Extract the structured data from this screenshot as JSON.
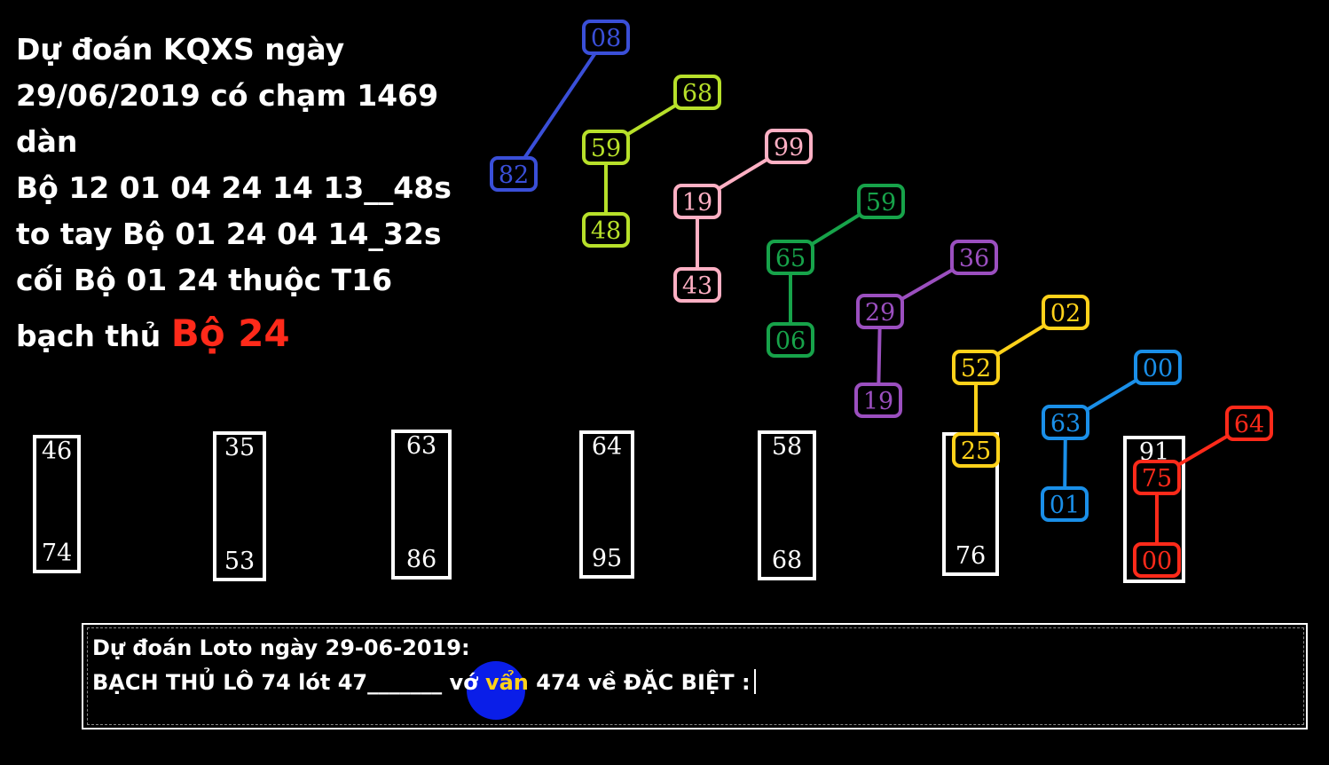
{
  "headline": {
    "lines": [
      "Dự đoán KQXS ngày",
      "29/06/2019 có chạm 1469",
      "dàn",
      "Bộ 12 01 04 24 14 13__48s",
      "to tay Bộ 01 24 04 14_32s",
      "cối Bộ 01 24 thuộc T16"
    ],
    "last_prefix": "bạch thủ",
    "last_highlight": "Bộ 24"
  },
  "colors": {
    "blue_dark": "#3a4fd8",
    "lime": "#b7e02a",
    "pink": "#ffb0c4",
    "green": "#17a34a",
    "purple": "#9b4fbf",
    "yellow": "#ffd21a",
    "blue": "#1a8fe8",
    "red": "#ff2a1a",
    "white": "#ffffff"
  },
  "columns": [
    {
      "top": "46",
      "bottom": "74"
    },
    {
      "top": "35",
      "bottom": "53"
    },
    {
      "top": "63",
      "bottom": "86"
    },
    {
      "top": "64",
      "bottom": "95"
    },
    {
      "top": "58",
      "bottom": "68"
    },
    {
      "top": "",
      "bottom": "76"
    },
    {
      "top": "91",
      "bottom": ""
    }
  ],
  "chains": [
    {
      "color": "blue_dark",
      "nodes": [
        "08",
        "82"
      ]
    },
    {
      "color": "lime",
      "nodes": [
        "68",
        "59",
        "48"
      ]
    },
    {
      "color": "pink",
      "nodes": [
        "99",
        "19",
        "43"
      ]
    },
    {
      "color": "green",
      "nodes": [
        "59",
        "65",
        "06"
      ]
    },
    {
      "color": "purple",
      "nodes": [
        "36",
        "29",
        "19"
      ]
    },
    {
      "color": "yellow",
      "nodes": [
        "02",
        "52",
        "25"
      ]
    },
    {
      "color": "blue",
      "nodes": [
        "00",
        "63",
        "01"
      ]
    },
    {
      "color": "red",
      "nodes": [
        "64",
        "75",
        "00"
      ]
    }
  ],
  "bottom": {
    "line1": "Dự đoán Loto ngày 29-06-2019:",
    "line2_before": "BẠCH THỦ LÔ 74 lót 47_______ vớ",
    "line2_highlight": "vẩn",
    "line2_after": "474 về ĐẶC BIỆT :"
  }
}
